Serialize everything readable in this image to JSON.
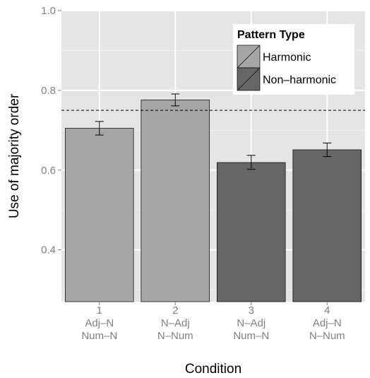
{
  "chart_data": {
    "type": "bar",
    "title": "",
    "xlabel": "Condition",
    "ylabel": "Use of majority order",
    "ylim": [
      0.27,
      1.0
    ],
    "yticks": [
      "0.4",
      "0.6",
      "0.8",
      "1.0"
    ],
    "ytick_values": [
      0.4,
      0.6,
      0.8,
      1.0
    ],
    "categories": [
      {
        "number": "1",
        "line1": "Adj–N",
        "line2": "Num–N"
      },
      {
        "number": "2",
        "line1": "N–Adj",
        "line2": "N–Num"
      },
      {
        "number": "3",
        "line1": "N–Adj",
        "line2": "Num–N"
      },
      {
        "number": "4",
        "line1": "Adj–N",
        "line2": "N–Num"
      }
    ],
    "values": [
      0.705,
      0.776,
      0.619,
      0.651
    ],
    "error_low": [
      0.688,
      0.761,
      0.602,
      0.634
    ],
    "error_high": [
      0.722,
      0.791,
      0.637,
      0.668
    ],
    "groups": [
      "Harmonic",
      "Harmonic",
      "Non–harmonic",
      "Non–harmonic"
    ],
    "reference_line": 0.75,
    "grid": true,
    "legend": {
      "title": "Pattern Type",
      "placement": "top-right",
      "entries": [
        {
          "label": "Harmonic",
          "color": "#a6a6a6"
        },
        {
          "label": "Non–harmonic",
          "color": "#666666"
        }
      ]
    },
    "colors": {
      "panel": "#e5e5e5",
      "grid_major": "#ffffff",
      "grid_minor": "#f2f2f2",
      "bar_outline": "#000000",
      "tick_text": "#7f7f7f"
    }
  }
}
